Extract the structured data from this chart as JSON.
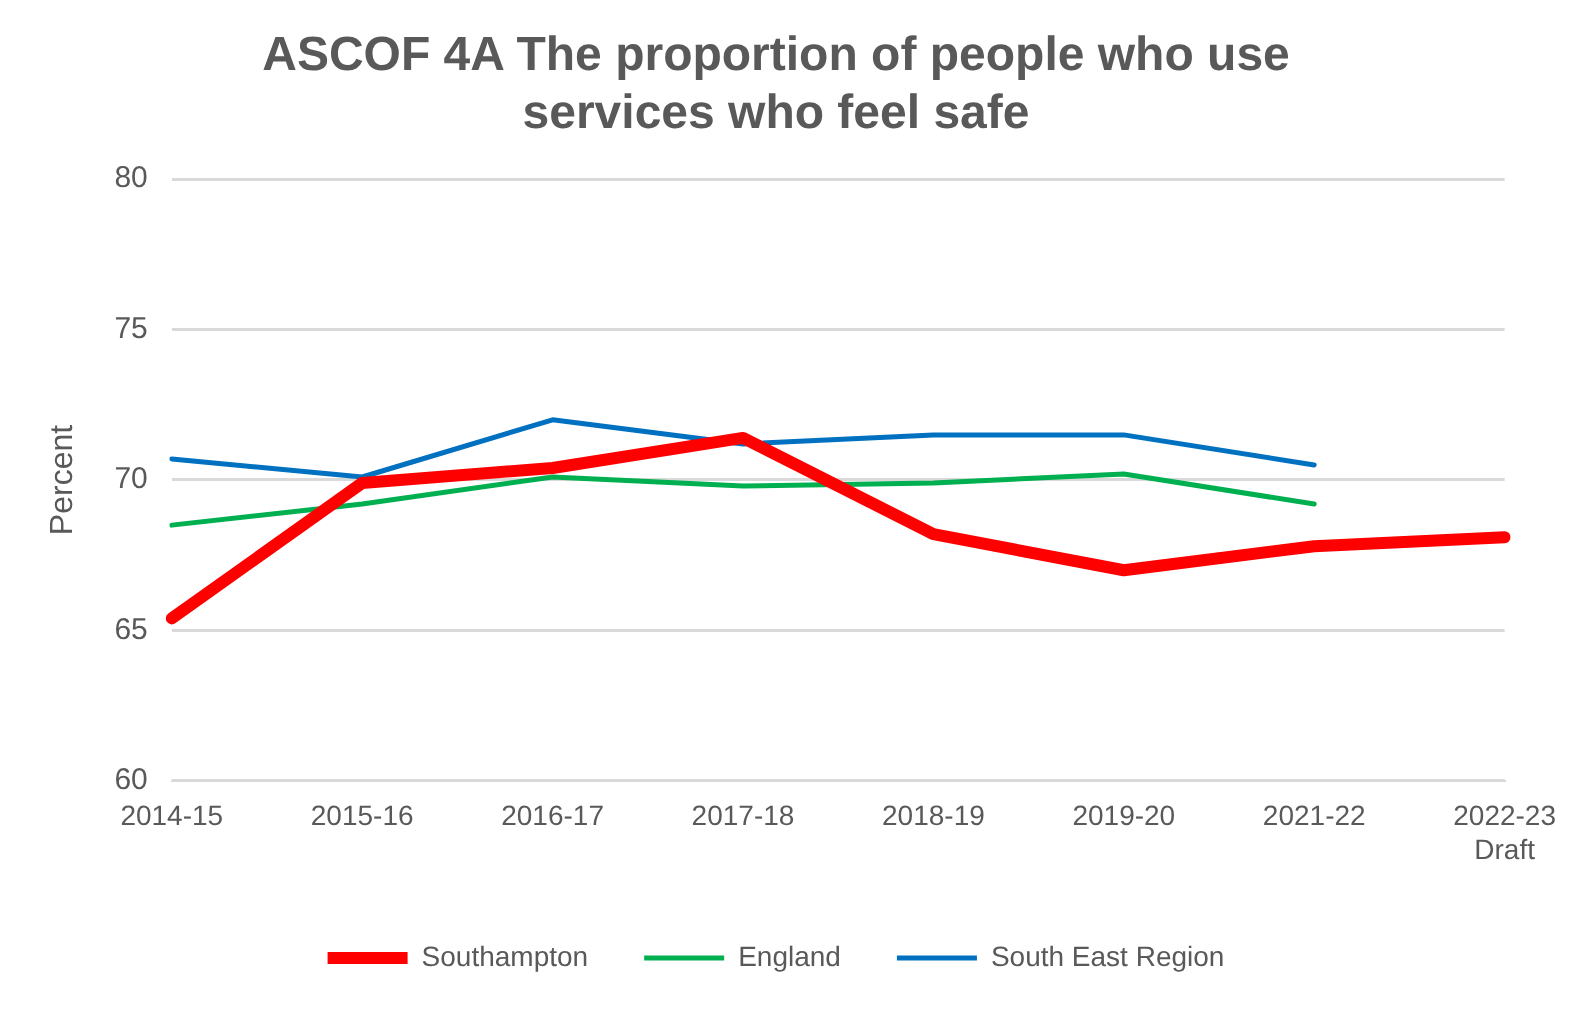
{
  "chart_data": {
    "type": "line",
    "title": "ASCOF 4A The proportion of people who use services who feel safe",
    "ylabel": "Percent",
    "categories": [
      "2014-15",
      "2015-16",
      "2016-17",
      "2017-18",
      "2018-19",
      "2019-20",
      "2021-22",
      "2022-23 Draft"
    ],
    "series": [
      {
        "name": "Southampton",
        "color": "#ff0000",
        "values": [
          65.4,
          69.9,
          70.4,
          71.4,
          68.2,
          67.0,
          67.8,
          68.1
        ]
      },
      {
        "name": "England",
        "color": "#00b050",
        "values": [
          68.5,
          69.2,
          70.1,
          69.8,
          69.9,
          70.2,
          69.2,
          null
        ]
      },
      {
        "name": "South East Region",
        "color": "#0070c0",
        "values": [
          70.7,
          70.1,
          72.0,
          71.2,
          71.5,
          71.5,
          70.5,
          null
        ]
      }
    ],
    "ylim": [
      60,
      80
    ],
    "yticks": [
      60,
      65,
      70,
      75,
      80
    ],
    "grid": "y",
    "legend": "bottom",
    "marker": "none",
    "line_style": "solid"
  }
}
